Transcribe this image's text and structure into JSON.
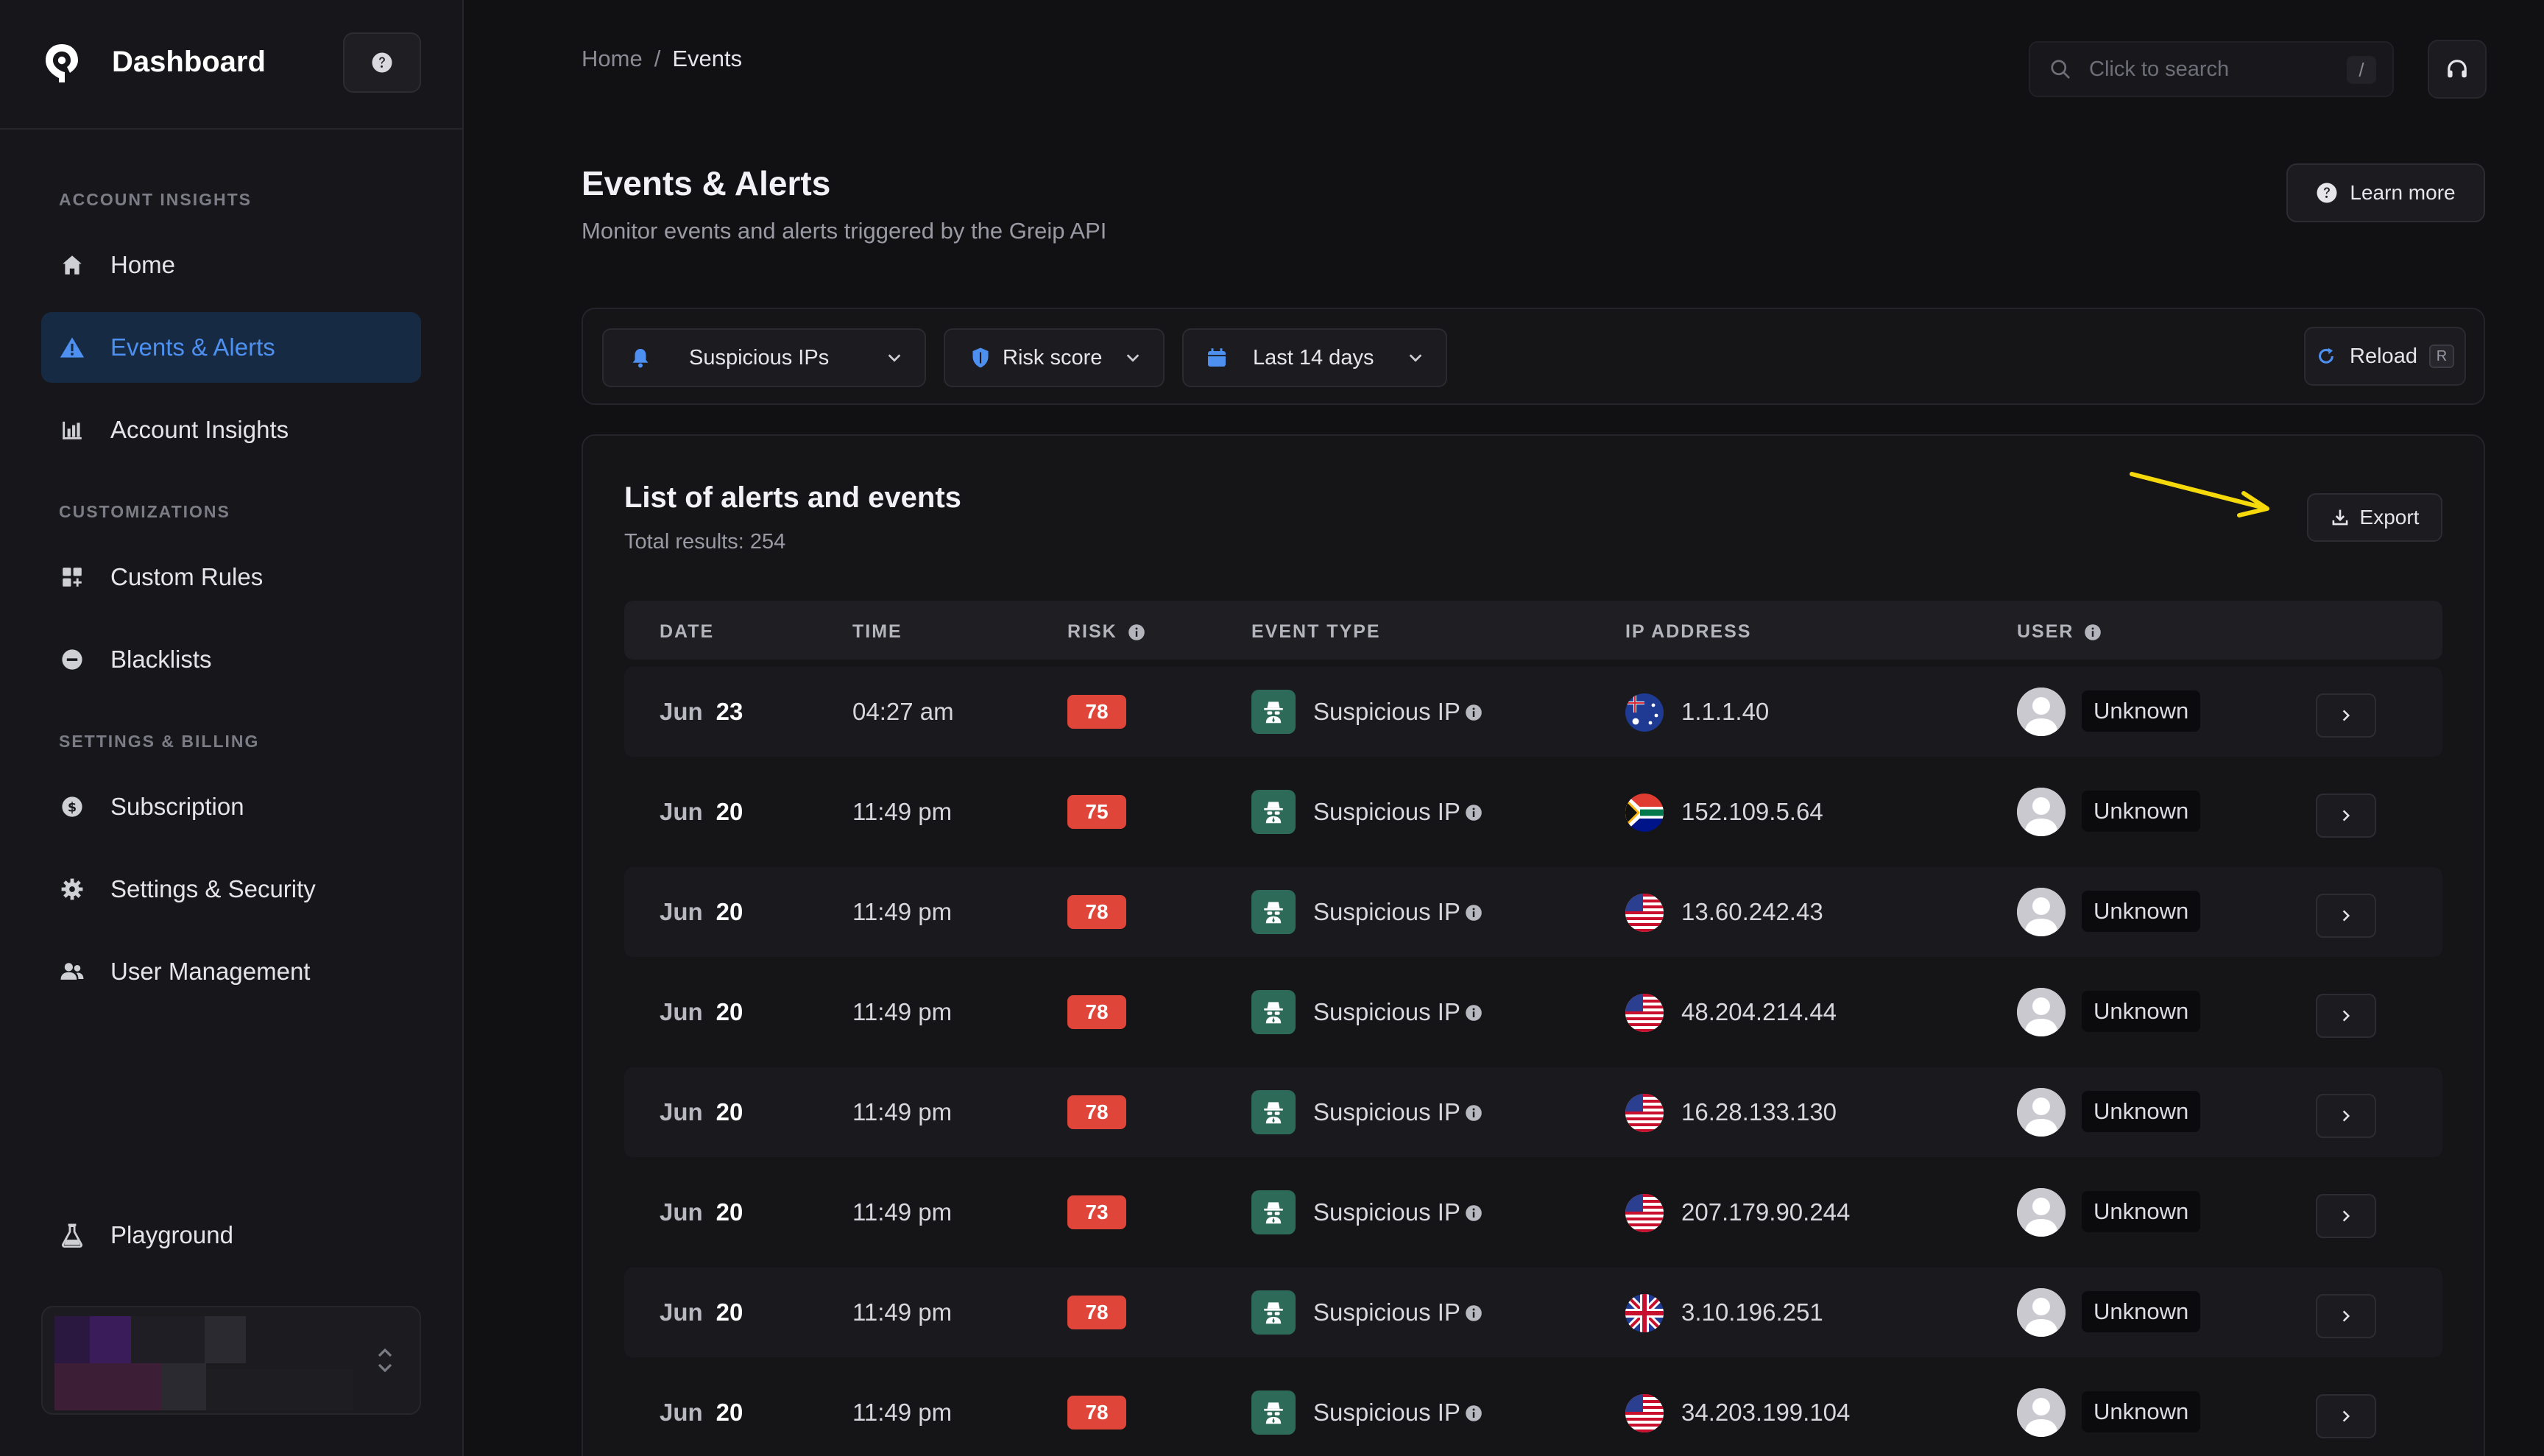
{
  "sidebar": {
    "brand": "Dashboard",
    "sections": {
      "account": "ACCOUNT INSIGHTS",
      "custom": "CUSTOMIZATIONS",
      "billing": "SETTINGS & BILLING"
    },
    "items": {
      "home": "Home",
      "events": "Events & Alerts",
      "insights": "Account Insights",
      "rules": "Custom Rules",
      "blacklists": "Blacklists",
      "subscription": "Subscription",
      "settings": "Settings & Security",
      "users": "User Management",
      "playground": "Playground"
    }
  },
  "topbar": {
    "breadcrumb": {
      "home": "Home",
      "sep": "/",
      "current": "Events"
    },
    "search_placeholder": "Click to search",
    "search_shortcut": "/"
  },
  "page": {
    "title": "Events & Alerts",
    "subtitle": "Monitor events and alerts triggered by the Greip API",
    "learn_more": "Learn more"
  },
  "filters": {
    "type": "Suspicious IPs",
    "risk": "Risk score",
    "range": "Last 14 days",
    "reload": "Reload",
    "reload_shortcut": "R"
  },
  "list": {
    "title": "List of alerts and events",
    "total": "Total results: 254",
    "export": "Export",
    "columns": {
      "date": "DATE",
      "time": "TIME",
      "risk": "RISK",
      "event_type": "EVENT TYPE",
      "ip": "IP ADDRESS",
      "user": "USER"
    },
    "rows": [
      {
        "month": "Jun",
        "day": "23",
        "time": "04:27 am",
        "risk": "78",
        "event": "Suspicious IP",
        "flag": "au",
        "ip": "1.1.1.40",
        "user": "Unknown"
      },
      {
        "month": "Jun",
        "day": "20",
        "time": "11:49 pm",
        "risk": "75",
        "event": "Suspicious IP",
        "flag": "za",
        "ip": "152.109.5.64",
        "user": "Unknown"
      },
      {
        "month": "Jun",
        "day": "20",
        "time": "11:49 pm",
        "risk": "78",
        "event": "Suspicious IP",
        "flag": "us",
        "ip": "13.60.242.43",
        "user": "Unknown"
      },
      {
        "month": "Jun",
        "day": "20",
        "time": "11:49 pm",
        "risk": "78",
        "event": "Suspicious IP",
        "flag": "us",
        "ip": "48.204.214.44",
        "user": "Unknown"
      },
      {
        "month": "Jun",
        "day": "20",
        "time": "11:49 pm",
        "risk": "78",
        "event": "Suspicious IP",
        "flag": "us",
        "ip": "16.28.133.130",
        "user": "Unknown"
      },
      {
        "month": "Jun",
        "day": "20",
        "time": "11:49 pm",
        "risk": "73",
        "event": "Suspicious IP",
        "flag": "us",
        "ip": "207.179.90.244",
        "user": "Unknown"
      },
      {
        "month": "Jun",
        "day": "20",
        "time": "11:49 pm",
        "risk": "78",
        "event": "Suspicious IP",
        "flag": "gb",
        "ip": "3.10.196.251",
        "user": "Unknown"
      },
      {
        "month": "Jun",
        "day": "20",
        "time": "11:49 pm",
        "risk": "78",
        "event": "Suspicious IP",
        "flag": "us",
        "ip": "34.203.199.104",
        "user": "Unknown"
      }
    ]
  },
  "colors": {
    "accent": "#4d90f0",
    "risk_badge": "#e0453a",
    "event_icon_bg": "#2e6a58",
    "annotation_arrow": "#f5d90a"
  }
}
